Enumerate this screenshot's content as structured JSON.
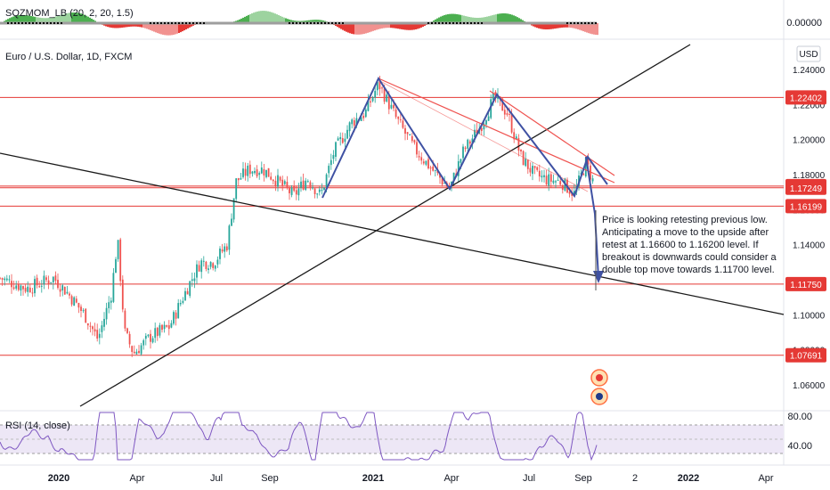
{
  "indicator_top": {
    "label": "SQZMOM_LB (20, 2, 20, 1.5)",
    "price_label": "0.00000"
  },
  "main": {
    "symbol_title": "Euro / U.S. Dollar, 1D, FXCM",
    "currency": "USD"
  },
  "rsi": {
    "label": "RSI (14, close)",
    "levels": [
      "80.00",
      "40.00"
    ]
  },
  "annotation": {
    "text": "Price is looking retesting previous low. Anticipating a move to the upside after retest at 1.16600 to 1.16200 level. If breakout is downwards could consider a double top move towards 1.11700 level.",
    "lines": [
      "Price is looking retesting previous low.",
      "Anticipating a move to the upside after",
      "retest at 1.16600 to 1.16200 level. If",
      "breakout is downwards could consider a",
      "double top move towards 1.11700 level."
    ]
  },
  "colors": {
    "up": "#26a69a",
    "down": "#ef5350",
    "level_line": "#e53935",
    "trend_line": "#1a1a1a",
    "pattern": "#3f51a3",
    "rsi_line": "#7e57c2",
    "rsi_band": "#ede7f6",
    "squeeze_pos": "#4caf50",
    "squeeze_neg": "#e53935"
  },
  "chart_data": {
    "type": "candlestick",
    "title": "Euro / U.S. Dollar, 1D, FXCM",
    "x_ticks": [
      "2020",
      "Apr",
      "Jul",
      "Sep",
      "2021",
      "Apr",
      "Jul",
      "Sep",
      "2",
      "2022",
      "Apr"
    ],
    "y_ticks": [
      "1.24000",
      "1.22000",
      "1.20000",
      "1.18000",
      "1.16000",
      "1.14000",
      "1.12000",
      "1.10000",
      "1.08000",
      "1.06000"
    ],
    "ylim": [
      1.05,
      1.25
    ],
    "price_levels": [
      {
        "label": "1.22402",
        "value": 1.22402
      },
      {
        "label": "1.17346",
        "value": 1.17346
      },
      {
        "label": "1.17249",
        "value": 1.17249
      },
      {
        "label": "1.16199",
        "value": 1.16199
      },
      {
        "label": "1.11750",
        "value": 1.1175
      },
      {
        "label": "1.07691",
        "value": 1.07691
      }
    ],
    "highlighted_levels": [
      "1.22402",
      "1.17346",
      "1.17249",
      "1.16199",
      "1.11750",
      "1.07691"
    ],
    "price_path": [
      [
        0,
        1.121
      ],
      [
        30,
        1.115
      ],
      [
        60,
        1.121
      ],
      [
        75,
        1.113
      ],
      [
        95,
        1.1
      ],
      [
        110,
        1.086
      ],
      [
        125,
        1.112
      ],
      [
        132,
        1.143
      ],
      [
        140,
        1.09
      ],
      [
        150,
        1.078
      ],
      [
        170,
        1.088
      ],
      [
        190,
        1.093
      ],
      [
        210,
        1.115
      ],
      [
        225,
        1.13
      ],
      [
        240,
        1.13
      ],
      [
        255,
        1.14
      ],
      [
        265,
        1.176
      ],
      [
        280,
        1.183
      ],
      [
        295,
        1.183
      ],
      [
        310,
        1.177
      ],
      [
        330,
        1.168
      ],
      [
        345,
        1.178
      ],
      [
        360,
        1.168
      ],
      [
        375,
        1.193
      ],
      [
        395,
        1.21
      ],
      [
        410,
        1.215
      ],
      [
        425,
        1.232
      ],
      [
        445,
        1.212
      ],
      [
        465,
        1.195
      ],
      [
        485,
        1.183
      ],
      [
        505,
        1.172
      ],
      [
        520,
        1.193
      ],
      [
        540,
        1.208
      ],
      [
        555,
        1.224
      ],
      [
        570,
        1.215
      ],
      [
        585,
        1.19
      ],
      [
        600,
        1.18
      ],
      [
        615,
        1.177
      ],
      [
        630,
        1.176
      ],
      [
        645,
        1.169
      ],
      [
        658,
        1.187
      ],
      [
        666,
        1.176
      ]
    ]
  }
}
